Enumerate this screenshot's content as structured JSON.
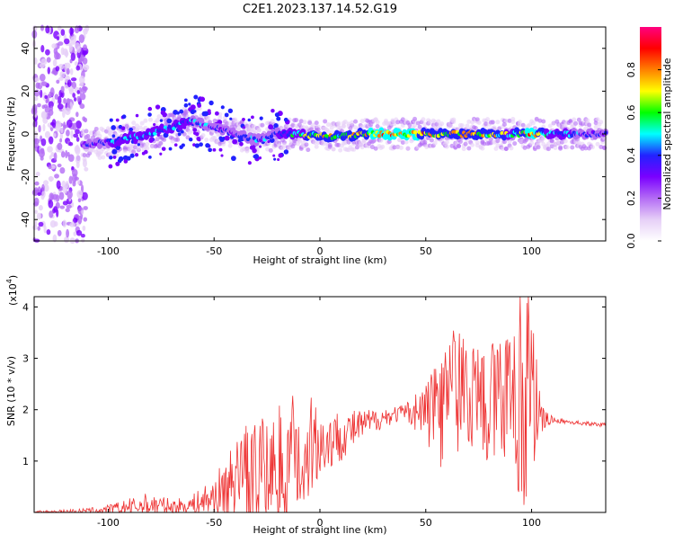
{
  "title": "C2E1.2023.137.14.52.G19",
  "chart_data": [
    {
      "type": "heatmap",
      "title": "C2E1.2023.137.14.52.G19",
      "xlabel": "Height of straight line (km)",
      "ylabel": "Frequency (Hz)",
      "xlim": [
        -135,
        135
      ],
      "ylim": [
        -50,
        50
      ],
      "xticks": [
        -100,
        -50,
        0,
        50,
        100
      ],
      "yticks": [
        -40,
        -20,
        0,
        20,
        40
      ],
      "colorbar": {
        "label": "Normalized spectral amplitude",
        "ticks": [
          0.0,
          0.2,
          0.4,
          0.6,
          0.8
        ],
        "range": [
          0,
          1
        ],
        "colors": [
          "#ffffff",
          "#e6cff7",
          "#b36bf5",
          "#7a00ff",
          "#2222ff",
          "#00ffff",
          "#00ff00",
          "#ffff00",
          "#ff8000",
          "#ff0000",
          "#ff0080"
        ]
      },
      "ridge": [
        {
          "x": -112,
          "y": -5,
          "amp": 0.35
        },
        {
          "x": -100,
          "y": -4,
          "amp": 0.45
        },
        {
          "x": -90,
          "y": -2,
          "amp": 0.5
        },
        {
          "x": -80,
          "y": 0,
          "amp": 0.5
        },
        {
          "x": -70,
          "y": 3,
          "amp": 0.5
        },
        {
          "x": -60,
          "y": 6,
          "amp": 0.45
        },
        {
          "x": -50,
          "y": 3,
          "amp": 0.4
        },
        {
          "x": -40,
          "y": 0,
          "amp": 0.4
        },
        {
          "x": -30,
          "y": -3,
          "amp": 0.45
        },
        {
          "x": -20,
          "y": 0,
          "amp": 0.45
        },
        {
          "x": -10,
          "y": 0,
          "amp": 0.6
        },
        {
          "x": 0,
          "y": -1,
          "amp": 0.7
        },
        {
          "x": 10,
          "y": -1,
          "amp": 0.7
        },
        {
          "x": 20,
          "y": 0,
          "amp": 0.8
        },
        {
          "x": 30,
          "y": 0,
          "amp": 0.85
        },
        {
          "x": 40,
          "y": 0,
          "amp": 0.85
        },
        {
          "x": 50,
          "y": 0,
          "amp": 0.8
        },
        {
          "x": 60,
          "y": 0,
          "amp": 0.8
        },
        {
          "x": 70,
          "y": 0,
          "amp": 0.8
        },
        {
          "x": 80,
          "y": 0,
          "amp": 0.75
        },
        {
          "x": 90,
          "y": 0,
          "amp": 0.6
        },
        {
          "x": 100,
          "y": 0,
          "amp": 0.9
        },
        {
          "x": 110,
          "y": 0,
          "amp": 0.5
        },
        {
          "x": 120,
          "y": 0,
          "amp": 0.45
        },
        {
          "x": 135,
          "y": 0,
          "amp": 0.45
        }
      ],
      "noise_region": [
        -135,
        -110
      ]
    },
    {
      "type": "line",
      "xlabel": "Height of straight line (km)",
      "ylabel": "SNR (10 * v/v)",
      "yscale_label": "(x10",
      "yscale_exp": "4",
      "xlim": [
        -135,
        135
      ],
      "ylim": [
        0,
        4.2
      ],
      "xticks": [
        -100,
        -50,
        0,
        50,
        100
      ],
      "yticks": [
        1,
        2,
        3,
        4
      ],
      "color": "#ee3333",
      "envelope": [
        {
          "x": -135,
          "base": 0.0,
          "spread": 0.03
        },
        {
          "x": -110,
          "base": 0.03,
          "spread": 0.05
        },
        {
          "x": -100,
          "base": 0.05,
          "spread": 0.1
        },
        {
          "x": -80,
          "base": 0.15,
          "spread": 0.25
        },
        {
          "x": -70,
          "base": 0.1,
          "spread": 0.15
        },
        {
          "x": -60,
          "base": 0.15,
          "spread": 0.2
        },
        {
          "x": -50,
          "base": 0.3,
          "spread": 0.4
        },
        {
          "x": -40,
          "base": 0.6,
          "spread": 0.8
        },
        {
          "x": -30,
          "base": 0.7,
          "spread": 1.0
        },
        {
          "x": -20,
          "base": 0.8,
          "spread": 1.1
        },
        {
          "x": -10,
          "base": 1.0,
          "spread": 1.2
        },
        {
          "x": 0,
          "base": 1.3,
          "spread": 0.7
        },
        {
          "x": 10,
          "base": 1.5,
          "spread": 0.5
        },
        {
          "x": 20,
          "base": 1.7,
          "spread": 0.3
        },
        {
          "x": 30,
          "base": 1.85,
          "spread": 0.2
        },
        {
          "x": 40,
          "base": 1.95,
          "spread": 0.15
        },
        {
          "x": 50,
          "base": 2.0,
          "spread": 0.6
        },
        {
          "x": 55,
          "base": 2.2,
          "spread": 1.4
        },
        {
          "x": 60,
          "base": 2.2,
          "spread": 1.2
        },
        {
          "x": 70,
          "base": 2.2,
          "spread": 1.1
        },
        {
          "x": 80,
          "base": 2.0,
          "spread": 1.2
        },
        {
          "x": 90,
          "base": 2.0,
          "spread": 1.4
        },
        {
          "x": 95,
          "base": 2.0,
          "spread": 2.0
        },
        {
          "x": 100,
          "base": 2.0,
          "spread": 1.8
        },
        {
          "x": 105,
          "base": 1.8,
          "spread": 0.3
        },
        {
          "x": 110,
          "base": 1.8,
          "spread": 0.05
        },
        {
          "x": 120,
          "base": 1.75,
          "spread": 0.04
        },
        {
          "x": 135,
          "base": 1.7,
          "spread": 0.04
        }
      ]
    }
  ]
}
